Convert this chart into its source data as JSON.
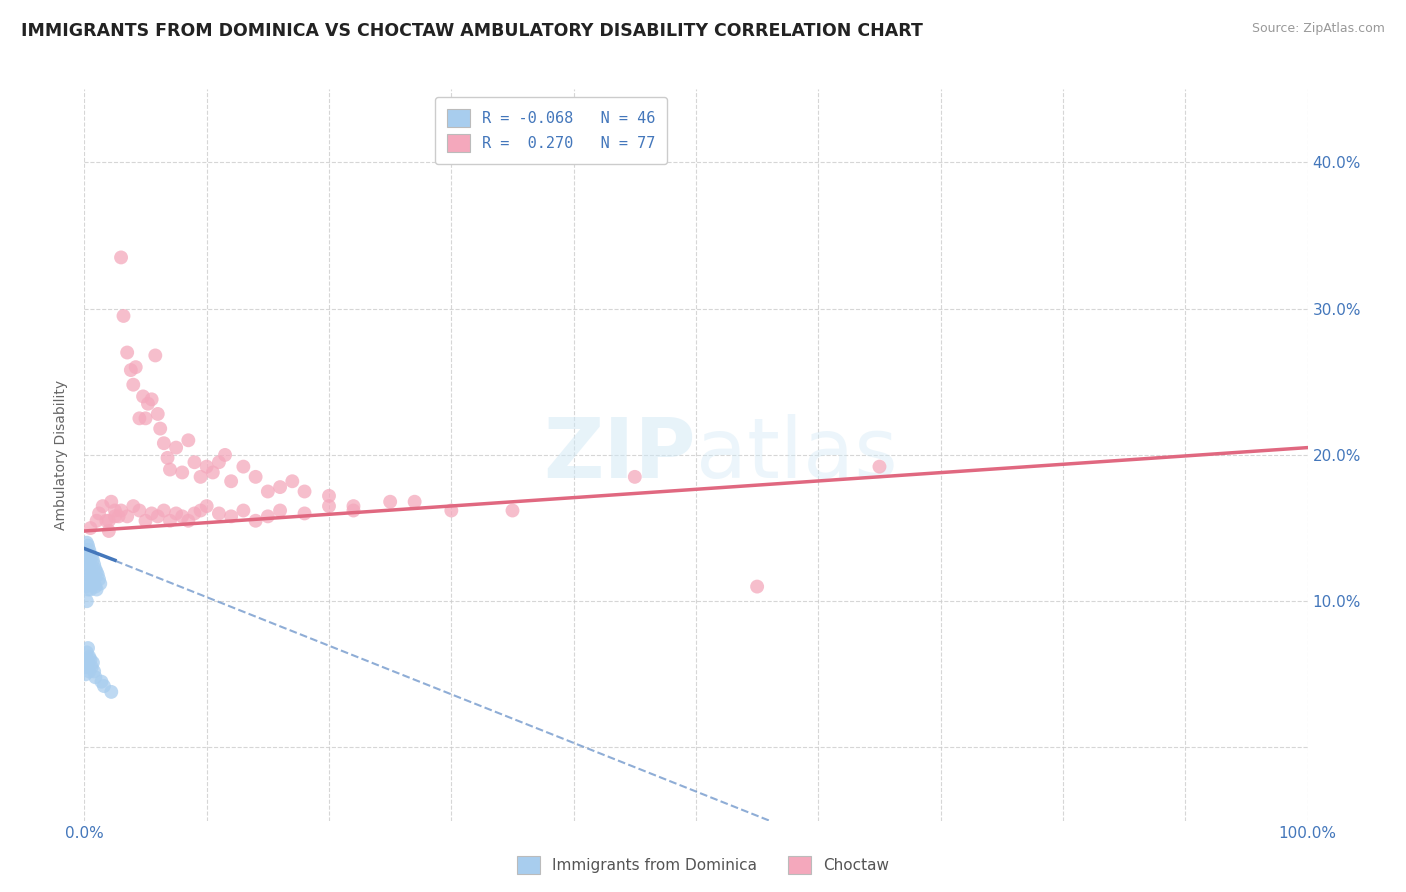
{
  "title": "IMMIGRANTS FROM DOMINICA VS CHOCTAW AMBULATORY DISABILITY CORRELATION CHART",
  "source": "Source: ZipAtlas.com",
  "ylabel": "Ambulatory Disability",
  "xlim": [
    0.0,
    1.0
  ],
  "ylim": [
    -0.05,
    0.45
  ],
  "x_ticks": [
    0.0,
    0.1,
    0.2,
    0.3,
    0.4,
    0.5,
    0.6,
    0.7,
    0.8,
    0.9,
    1.0
  ],
  "y_ticks": [
    0.0,
    0.1,
    0.2,
    0.3,
    0.4
  ],
  "y_tick_labels_right": [
    "",
    "10.0%",
    "20.0%",
    "30.0%",
    "40.0%"
  ],
  "legend1_label": "Immigrants from Dominica",
  "legend2_label": "Choctaw",
  "R1": -0.068,
  "N1": 46,
  "R2": 0.27,
  "N2": 77,
  "color_blue": "#A8CDEE",
  "color_pink": "#F4A8BC",
  "color_blue_line": "#4477BB",
  "color_pink_line": "#E06880",
  "color_blue_text": "#4477BB",
  "watermark_color": "#D0E8F5",
  "pink_trend_x0": 0.0,
  "pink_trend_y0": 0.148,
  "pink_trend_x1": 1.0,
  "pink_trend_y1": 0.205,
  "blue_trend_solid_x0": 0.0,
  "blue_trend_solid_y0": 0.136,
  "blue_trend_solid_x1": 0.025,
  "blue_trend_solid_y1": 0.128,
  "blue_trend_dash_x0": 0.0,
  "blue_trend_dash_y0": 0.136,
  "blue_trend_dash_x1": 0.56,
  "blue_trend_dash_y1": -0.05,
  "blue_dots_x": [
    0.001,
    0.001,
    0.001,
    0.002,
    0.002,
    0.002,
    0.002,
    0.003,
    0.003,
    0.003,
    0.003,
    0.004,
    0.004,
    0.004,
    0.005,
    0.005,
    0.005,
    0.006,
    0.006,
    0.007,
    0.007,
    0.008,
    0.008,
    0.009,
    0.009,
    0.01,
    0.01,
    0.011,
    0.012,
    0.013,
    0.001,
    0.001,
    0.002,
    0.002,
    0.003,
    0.003,
    0.004,
    0.004,
    0.005,
    0.006,
    0.007,
    0.008,
    0.009,
    0.014,
    0.016,
    0.022
  ],
  "blue_dots_y": [
    0.135,
    0.125,
    0.11,
    0.14,
    0.13,
    0.115,
    0.1,
    0.138,
    0.128,
    0.118,
    0.108,
    0.135,
    0.125,
    0.112,
    0.132,
    0.12,
    0.108,
    0.13,
    0.118,
    0.128,
    0.115,
    0.125,
    0.112,
    0.122,
    0.11,
    0.12,
    0.108,
    0.118,
    0.115,
    0.112,
    0.06,
    0.05,
    0.065,
    0.055,
    0.068,
    0.058,
    0.062,
    0.052,
    0.06,
    0.055,
    0.058,
    0.052,
    0.048,
    0.045,
    0.042,
    0.038
  ],
  "pink_dots_x": [
    0.005,
    0.01,
    0.012,
    0.015,
    0.018,
    0.02,
    0.022,
    0.025,
    0.028,
    0.03,
    0.032,
    0.035,
    0.038,
    0.04,
    0.042,
    0.045,
    0.048,
    0.05,
    0.052,
    0.055,
    0.058,
    0.06,
    0.062,
    0.065,
    0.068,
    0.07,
    0.075,
    0.08,
    0.085,
    0.09,
    0.095,
    0.1,
    0.105,
    0.11,
    0.115,
    0.12,
    0.13,
    0.14,
    0.15,
    0.16,
    0.17,
    0.18,
    0.2,
    0.22,
    0.25,
    0.3,
    0.35,
    0.45,
    0.55,
    0.65,
    0.02,
    0.025,
    0.03,
    0.035,
    0.04,
    0.045,
    0.05,
    0.055,
    0.06,
    0.065,
    0.07,
    0.075,
    0.08,
    0.085,
    0.09,
    0.095,
    0.1,
    0.11,
    0.12,
    0.13,
    0.14,
    0.15,
    0.16,
    0.18,
    0.2,
    0.22,
    0.27
  ],
  "pink_dots_y": [
    0.15,
    0.155,
    0.16,
    0.165,
    0.155,
    0.148,
    0.168,
    0.162,
    0.158,
    0.335,
    0.295,
    0.27,
    0.258,
    0.248,
    0.26,
    0.225,
    0.24,
    0.225,
    0.235,
    0.238,
    0.268,
    0.228,
    0.218,
    0.208,
    0.198,
    0.19,
    0.205,
    0.188,
    0.21,
    0.195,
    0.185,
    0.192,
    0.188,
    0.195,
    0.2,
    0.182,
    0.192,
    0.185,
    0.175,
    0.178,
    0.182,
    0.175,
    0.172,
    0.165,
    0.168,
    0.162,
    0.162,
    0.185,
    0.11,
    0.192,
    0.155,
    0.158,
    0.162,
    0.158,
    0.165,
    0.162,
    0.155,
    0.16,
    0.158,
    0.162,
    0.155,
    0.16,
    0.158,
    0.155,
    0.16,
    0.162,
    0.165,
    0.16,
    0.158,
    0.162,
    0.155,
    0.158,
    0.162,
    0.16,
    0.165,
    0.162,
    0.168
  ]
}
